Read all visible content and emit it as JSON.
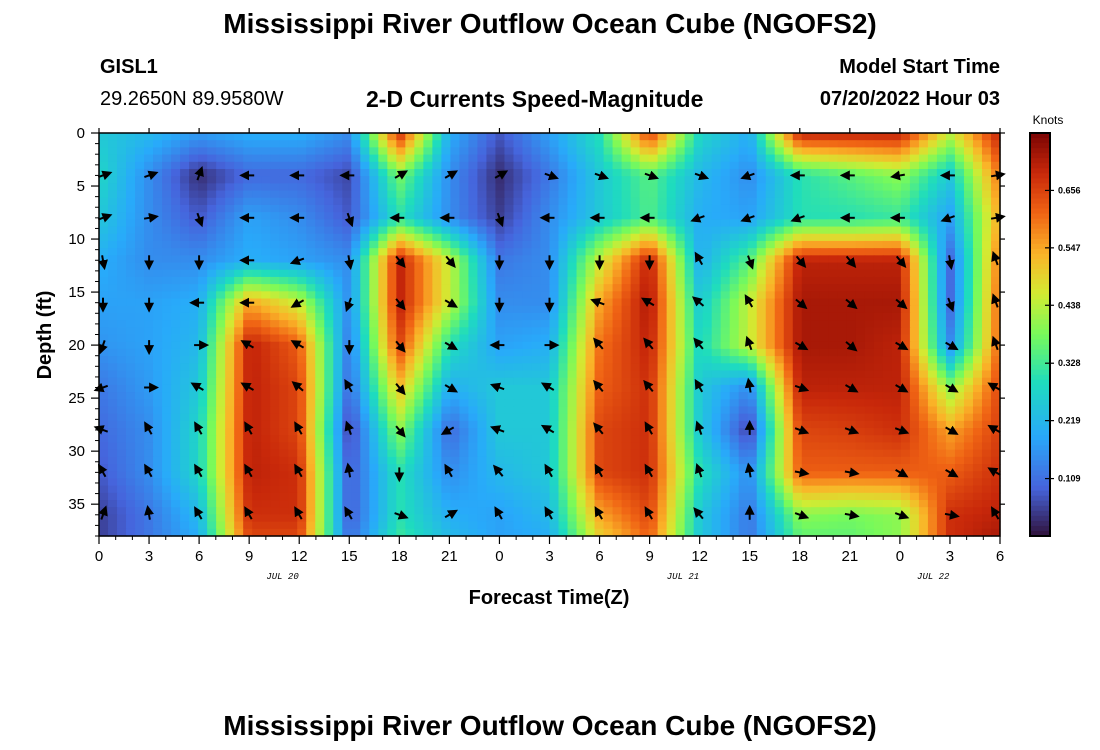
{
  "page": {
    "title_top": "Mississippi River Outflow Ocean Cube (NGOFS2)",
    "title_bottom": "Mississippi River Outflow Ocean Cube (NGOFS2)",
    "station": "GISL1",
    "coords": "29.2650N  89.9580W",
    "subtitle": "2-D Currents Speed-Magnitude",
    "model_label": "Model Start Time",
    "model_time": "07/20/2022 Hour 03"
  },
  "chart_data": {
    "type": "heatmap",
    "title": "2-D Currents Speed-Magnitude",
    "xlabel": "Forecast Time(Z)",
    "ylabel": "Depth (ft)",
    "x_ticks": [
      "0",
      "3",
      "6",
      "9",
      "12",
      "15",
      "18",
      "21",
      "0",
      "3",
      "6",
      "9",
      "12",
      "15",
      "18",
      "21",
      "0",
      "3",
      "6"
    ],
    "x_date_labels": [
      {
        "label": "JUL 20",
        "at_hours": 11
      },
      {
        "label": "JUL 21",
        "at_hours": 35
      },
      {
        "label": "JUL 22",
        "at_hours": 50
      }
    ],
    "x_range_hours": [
      0,
      54
    ],
    "y_ticks": [
      "0",
      "5",
      "10",
      "15",
      "20",
      "25",
      "30",
      "35"
    ],
    "y_range_ft": [
      0,
      38
    ],
    "y_inverted": true,
    "colorbar": {
      "title": "Knots",
      "ticks": [
        "0.656",
        "0.547",
        "0.438",
        "0.328",
        "0.219",
        "0.109"
      ],
      "tick_values": [
        0.656,
        0.547,
        0.438,
        0.328,
        0.219,
        0.109
      ],
      "range": [
        0,
        0.765
      ]
    },
    "speed_grid": {
      "hours": [
        0,
        3,
        6,
        9,
        12,
        15,
        18,
        21,
        24,
        27,
        30,
        33,
        36,
        39,
        42,
        45,
        48,
        51,
        54
      ],
      "depths_ft": [
        0,
        4,
        8,
        12,
        16,
        20,
        24,
        28,
        32,
        36,
        38
      ],
      "values_knots": [
        [
          0.25,
          0.22,
          0.17,
          0.2,
          0.2,
          0.15,
          0.68,
          0.2,
          0.08,
          0.18,
          0.3,
          0.66,
          0.28,
          0.2,
          0.7,
          0.7,
          0.7,
          0.45,
          0.7
        ],
        [
          0.28,
          0.15,
          0.03,
          0.1,
          0.1,
          0.06,
          0.38,
          0.15,
          0.03,
          0.12,
          0.25,
          0.35,
          0.22,
          0.15,
          0.3,
          0.35,
          0.4,
          0.25,
          0.6
        ],
        [
          0.25,
          0.15,
          0.08,
          0.18,
          0.15,
          0.08,
          0.3,
          0.15,
          0.05,
          0.15,
          0.25,
          0.34,
          0.2,
          0.18,
          0.3,
          0.3,
          0.32,
          0.18,
          0.55
        ],
        [
          0.2,
          0.15,
          0.15,
          0.2,
          0.18,
          0.15,
          0.7,
          0.45,
          0.12,
          0.15,
          0.45,
          0.7,
          0.2,
          0.35,
          0.7,
          0.7,
          0.7,
          0.1,
          0.6
        ],
        [
          0.18,
          0.18,
          0.2,
          0.55,
          0.45,
          0.15,
          0.7,
          0.45,
          0.15,
          0.15,
          0.55,
          0.72,
          0.25,
          0.45,
          0.72,
          0.72,
          0.72,
          0.1,
          0.62
        ],
        [
          0.16,
          0.18,
          0.22,
          0.7,
          0.62,
          0.12,
          0.65,
          0.3,
          0.18,
          0.2,
          0.6,
          0.7,
          0.28,
          0.45,
          0.72,
          0.72,
          0.7,
          0.15,
          0.62
        ],
        [
          0.12,
          0.17,
          0.25,
          0.7,
          0.65,
          0.1,
          0.52,
          0.2,
          0.25,
          0.25,
          0.62,
          0.68,
          0.25,
          0.15,
          0.7,
          0.7,
          0.7,
          0.4,
          0.65
        ],
        [
          0.1,
          0.15,
          0.28,
          0.7,
          0.65,
          0.05,
          0.4,
          0.1,
          0.25,
          0.25,
          0.65,
          0.68,
          0.25,
          0.05,
          0.65,
          0.66,
          0.68,
          0.55,
          0.66
        ],
        [
          0.08,
          0.15,
          0.28,
          0.7,
          0.68,
          0.08,
          0.3,
          0.15,
          0.22,
          0.25,
          0.65,
          0.68,
          0.3,
          0.15,
          0.62,
          0.62,
          0.62,
          0.62,
          0.68
        ],
        [
          0.05,
          0.12,
          0.22,
          0.68,
          0.68,
          0.08,
          0.3,
          0.2,
          0.18,
          0.22,
          0.55,
          0.65,
          0.25,
          0.12,
          0.4,
          0.38,
          0.4,
          0.68,
          0.7
        ],
        [
          0.05,
          0.12,
          0.2,
          0.65,
          0.65,
          0.1,
          0.32,
          0.22,
          0.18,
          0.2,
          0.5,
          0.62,
          0.25,
          0.12,
          0.36,
          0.36,
          0.4,
          0.68,
          0.72
        ]
      ]
    },
    "vectors": {
      "hours": [
        0,
        3,
        6,
        9,
        12,
        15,
        18,
        21,
        24,
        27,
        30,
        33,
        36,
        39,
        42,
        45,
        48,
        51,
        54
      ],
      "depths_ft": [
        4,
        8,
        12,
        16,
        20,
        24,
        28,
        32,
        36
      ],
      "directions_deg": [
        [
          70,
          70,
          20,
          270,
          270,
          270,
          60,
          60,
          60,
          110,
          110,
          110,
          110,
          250,
          270,
          270,
          260,
          270,
          80
        ],
        [
          70,
          80,
          160,
          270,
          270,
          160,
          270,
          270,
          160,
          270,
          270,
          270,
          250,
          250,
          250,
          270,
          270,
          250,
          80
        ],
        [
          170,
          180,
          180,
          270,
          250,
          170,
          140,
          140,
          180,
          180,
          180,
          180,
          330,
          160,
          140,
          140,
          140,
          170,
          340
        ],
        [
          180,
          180,
          270,
          270,
          240,
          200,
          140,
          120,
          180,
          180,
          290,
          300,
          310,
          330,
          130,
          130,
          130,
          160,
          340
        ],
        [
          200,
          180,
          90,
          300,
          300,
          180,
          140,
          120,
          270,
          90,
          320,
          320,
          320,
          340,
          120,
          130,
          120,
          120,
          340
        ],
        [
          250,
          90,
          300,
          300,
          310,
          330,
          140,
          120,
          290,
          300,
          320,
          320,
          330,
          350,
          110,
          120,
          120,
          120,
          300
        ],
        [
          290,
          330,
          330,
          330,
          330,
          340,
          140,
          240,
          290,
          300,
          320,
          330,
          340,
          0,
          110,
          110,
          110,
          120,
          300
        ],
        [
          330,
          330,
          330,
          330,
          330,
          350,
          180,
          330,
          320,
          330,
          330,
          330,
          340,
          350,
          100,
          100,
          120,
          120,
          300
        ],
        [
          20,
          350,
          330,
          330,
          330,
          330,
          110,
          60,
          330,
          330,
          330,
          330,
          320,
          0,
          110,
          100,
          110,
          100,
          330
        ]
      ]
    }
  }
}
